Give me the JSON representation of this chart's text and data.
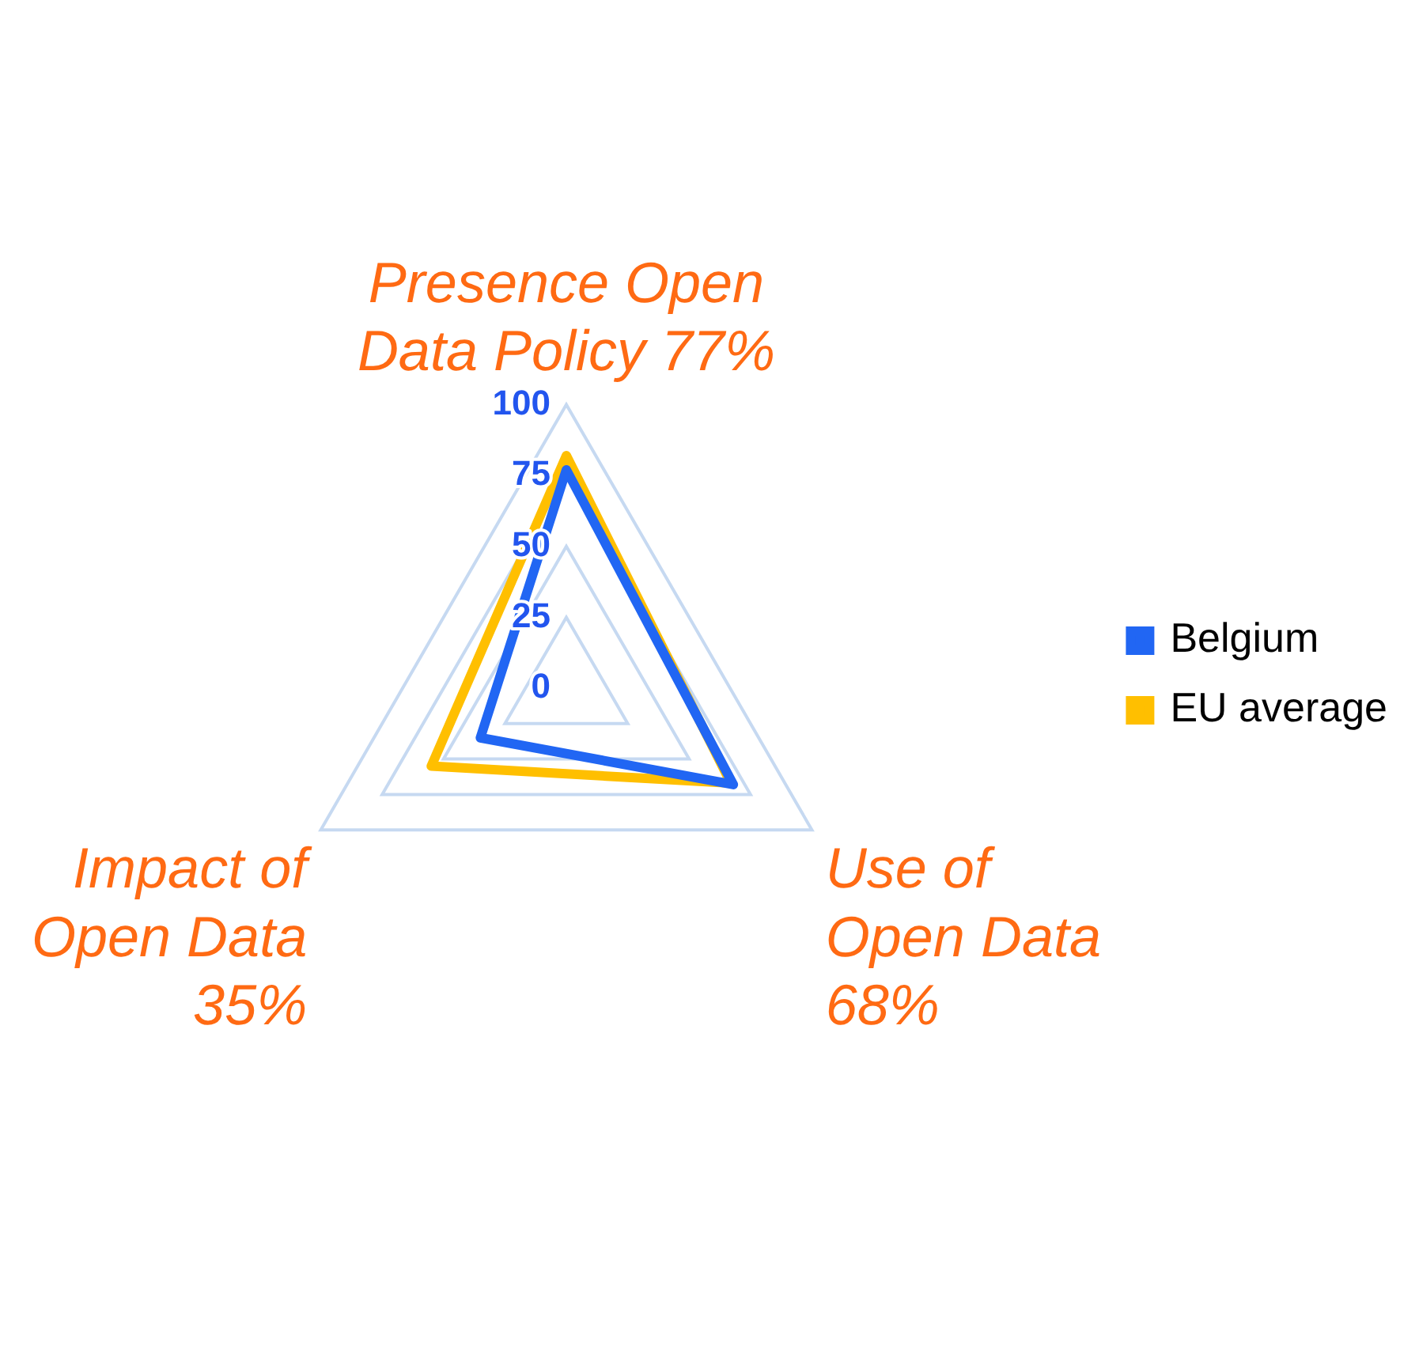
{
  "chart_data": {
    "type": "radar",
    "categories": [
      "Presence Open Data Policy 77%",
      "Use of Open Data 68%",
      "Impact of Open Data 35%"
    ],
    "series": [
      {
        "name": "Belgium",
        "color": "#2166f3",
        "values": [
          77,
          68,
          35
        ]
      },
      {
        "name": "EU average",
        "color": "#ffbf00",
        "values": [
          82,
          67,
          55
        ]
      }
    ],
    "ylim": [
      0,
      100
    ],
    "yticks": [
      0,
      25,
      50,
      75,
      100
    ],
    "grid": true,
    "legend": "right",
    "marker": "none",
    "line_style": "solid"
  }
}
